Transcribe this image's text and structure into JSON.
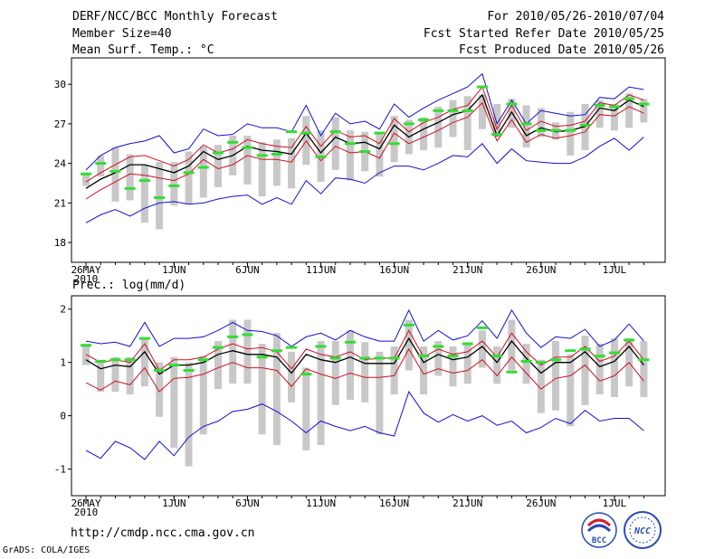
{
  "header": {
    "title": "DERF/NCC/BCC Monthly Forecast",
    "member_size": "Member Size=40",
    "variable": "Mean Surf. Temp.: °C",
    "period": "For 2010/05/26-2010/07/04",
    "refer_date": "Fcst Started Refer Date 2010/05/25",
    "produced_date": "Fcst Produced Date 2010/05/26"
  },
  "footer": {
    "url": "http://cmdp.ncc.cma.gov.cn",
    "credit": "GrADS: COLA/IGES",
    "logo_bcc": "BCC",
    "logo_ncc": "NCC"
  },
  "colors": {
    "blue": "#1010d0",
    "red": "#d01020",
    "black": "#000000",
    "box": "#c8c8c8",
    "green": "#33dd33"
  },
  "chart_data": [
    {
      "type": "line",
      "title": "Mean Surf. Temp.: °C",
      "x_tick_labels": [
        "26MAY",
        "1JUN",
        "6JUN",
        "11JUN",
        "16JUN",
        "21JUN",
        "26JUN",
        "1JUL"
      ],
      "x_tick_days": [
        0,
        6,
        11,
        16,
        21,
        26,
        31,
        36
      ],
      "year_label": "2010",
      "ylim": [
        16.5,
        32
      ],
      "y_ticks": [
        18,
        21,
        24,
        27,
        30
      ],
      "days": 39,
      "series": [
        {
          "name": "max",
          "color": "blue",
          "values": [
            23.5,
            24.6,
            25.2,
            25.5,
            25.7,
            26.1,
            24.8,
            25.1,
            26.6,
            26.1,
            26.2,
            27.0,
            26.7,
            26.7,
            26.4,
            28.4,
            26.1,
            27.8,
            27.0,
            27.2,
            26.6,
            28.5,
            27.5,
            28.2,
            28.8,
            29.3,
            29.8,
            30.8,
            27.0,
            28.8,
            27.0,
            28.0,
            27.8,
            27.6,
            27.7,
            29.0,
            28.9,
            29.8,
            29.6
          ]
        },
        {
          "name": "upper",
          "color": "red",
          "values": [
            22.6,
            23.3,
            23.9,
            24.5,
            24.6,
            24.2,
            23.8,
            24.3,
            25.4,
            24.8,
            25.1,
            25.8,
            25.5,
            25.3,
            25.2,
            26.8,
            25.3,
            26.5,
            26.0,
            26.1,
            25.5,
            27.4,
            26.4,
            27.1,
            27.5,
            28.1,
            28.4,
            29.8,
            26.6,
            28.4,
            26.5,
            27.2,
            26.8,
            26.9,
            27.2,
            28.6,
            28.4,
            29.2,
            28.8
          ]
        },
        {
          "name": "mean",
          "color": "black",
          "values": [
            22.1,
            22.8,
            23.3,
            23.9,
            23.9,
            23.6,
            23.3,
            23.8,
            24.9,
            24.3,
            24.6,
            25.3,
            25.0,
            24.9,
            24.7,
            26.3,
            24.8,
            26.0,
            25.5,
            25.6,
            25.1,
            26.9,
            26.0,
            26.6,
            27.1,
            27.7,
            28.0,
            29.2,
            26.1,
            27.9,
            26.1,
            26.7,
            26.4,
            26.5,
            26.8,
            28.2,
            28.0,
            28.8,
            28.3
          ]
        },
        {
          "name": "lower",
          "color": "red",
          "values": [
            21.3,
            22.0,
            22.6,
            23.2,
            23.1,
            22.9,
            22.7,
            23.2,
            24.3,
            23.6,
            23.9,
            24.6,
            24.3,
            24.3,
            24.1,
            25.7,
            24.2,
            25.3,
            24.8,
            24.9,
            24.4,
            26.3,
            25.5,
            26.0,
            26.5,
            27.1,
            27.5,
            28.6,
            25.7,
            27.3,
            25.6,
            26.2,
            25.9,
            26.1,
            26.4,
            27.7,
            27.6,
            28.3,
            27.8
          ]
        },
        {
          "name": "min",
          "color": "blue",
          "values": [
            19.5,
            20.1,
            20.5,
            20.0,
            20.6,
            21.0,
            21.1,
            20.9,
            21.0,
            21.3,
            21.5,
            21.6,
            20.9,
            21.4,
            20.9,
            22.7,
            21.7,
            22.9,
            22.8,
            22.5,
            23.3,
            23.8,
            23.8,
            23.5,
            24.0,
            24.6,
            24.5,
            25.5,
            24.0,
            25.1,
            24.2,
            24.1,
            24.0,
            24.0,
            24.5,
            25.3,
            25.9,
            25.0,
            26.0
          ]
        }
      ],
      "boxes": [
        [
          22.3,
          23.3
        ],
        [
          23.0,
          24.6
        ],
        [
          21.1,
          25.2
        ],
        [
          21.2,
          24.7
        ],
        [
          19.5,
          23.9
        ],
        [
          19.0,
          24.1
        ],
        [
          20.8,
          24.1
        ],
        [
          20.9,
          24.9
        ],
        [
          21.4,
          25.3
        ],
        [
          22.2,
          25.4
        ],
        [
          23.1,
          26.1
        ],
        [
          22.4,
          26.1
        ],
        [
          21.5,
          25.6
        ],
        [
          22.3,
          25.8
        ],
        [
          22.1,
          25.9
        ],
        [
          23.9,
          27.6
        ],
        [
          22.6,
          26.5
        ],
        [
          23.5,
          27.5
        ],
        [
          22.7,
          26.5
        ],
        [
          23.4,
          26.4
        ],
        [
          23.0,
          26.2
        ],
        [
          24.1,
          27.6
        ],
        [
          24.7,
          27.3
        ],
        [
          25.0,
          27.5
        ],
        [
          25.2,
          28.3
        ],
        [
          26.0,
          28.8
        ],
        [
          25.0,
          29.1
        ],
        [
          26.6,
          29.2
        ],
        [
          26.0,
          28.5
        ],
        [
          26.7,
          28.9
        ],
        [
          25.2,
          28.4
        ],
        [
          26.0,
          28.2
        ],
        [
          25.8,
          27.1
        ],
        [
          24.6,
          27.9
        ],
        [
          25.0,
          28.5
        ],
        [
          26.7,
          28.8
        ],
        [
          26.5,
          28.5
        ],
        [
          26.7,
          29.3
        ],
        [
          27.1,
          28.9
        ]
      ],
      "green_marks": [
        23.2,
        24.0,
        23.4,
        22.1,
        22.7,
        21.4,
        22.3,
        23.3,
        23.7,
        24.8,
        25.6,
        25.2,
        24.6,
        24.7,
        26.4,
        26.3,
        24.5,
        26.4,
        25.5,
        24.9,
        26.3,
        25.5,
        27.0,
        27.3,
        28.0,
        28.0,
        28.0,
        29.8,
        26.2,
        28.5,
        27.0,
        26.5,
        26.5,
        26.5,
        26.9,
        28.4,
        28.3,
        28.9,
        28.5
      ]
    },
    {
      "type": "line",
      "title": "Prec.: log(mm/d)",
      "x_tick_labels": [
        "26MAY",
        "1JUN",
        "6JUN",
        "11JUN",
        "16JUN",
        "21JUN",
        "26JUN",
        "1JUL"
      ],
      "x_tick_days": [
        0,
        6,
        11,
        16,
        21,
        26,
        31,
        36
      ],
      "year_label": "2010",
      "ylim": [
        -1.5,
        2.25
      ],
      "y_ticks": [
        -1,
        0,
        1,
        2
      ],
      "days": 39,
      "series": [
        {
          "name": "max",
          "color": "blue",
          "values": [
            1.4,
            1.35,
            1.38,
            1.3,
            1.75,
            1.3,
            1.45,
            1.45,
            1.48,
            1.6,
            1.75,
            1.6,
            1.58,
            1.5,
            1.3,
            1.48,
            1.55,
            1.42,
            1.6,
            1.48,
            1.4,
            1.4,
            1.98,
            1.4,
            1.6,
            1.42,
            1.5,
            1.78,
            1.45,
            1.98,
            1.55,
            1.28,
            1.48,
            1.45,
            1.62,
            1.3,
            1.42,
            1.72,
            1.4
          ]
        },
        {
          "name": "upper",
          "color": "red",
          "values": [
            1.15,
            1.0,
            1.05,
            1.0,
            1.35,
            0.85,
            1.05,
            1.05,
            1.1,
            1.25,
            1.35,
            1.25,
            1.28,
            1.2,
            0.88,
            1.25,
            1.15,
            1.1,
            1.2,
            1.05,
            1.08,
            1.08,
            1.6,
            1.1,
            1.25,
            1.15,
            1.2,
            1.4,
            1.1,
            1.55,
            1.2,
            0.95,
            1.1,
            1.1,
            1.3,
            1.02,
            1.12,
            1.4,
            1.05
          ]
        },
        {
          "name": "mean",
          "color": "black",
          "values": [
            1.05,
            0.88,
            0.95,
            0.92,
            1.2,
            0.78,
            0.95,
            0.95,
            1.0,
            1.15,
            1.22,
            1.15,
            1.15,
            1.1,
            0.8,
            1.15,
            1.05,
            1.0,
            1.1,
            0.98,
            0.98,
            0.98,
            1.45,
            1.0,
            1.15,
            1.05,
            1.1,
            1.3,
            1.0,
            1.4,
            1.08,
            0.8,
            1.0,
            1.0,
            1.2,
            0.92,
            1.02,
            1.3,
            0.95
          ]
        },
        {
          "name": "lower",
          "color": "red",
          "values": [
            0.62,
            0.48,
            0.65,
            0.58,
            0.9,
            0.45,
            0.7,
            0.72,
            0.78,
            0.9,
            1.0,
            0.9,
            0.9,
            0.85,
            0.55,
            0.88,
            0.78,
            0.7,
            0.8,
            0.72,
            0.72,
            0.75,
            1.25,
            0.78,
            0.88,
            0.8,
            0.85,
            1.05,
            0.75,
            1.1,
            0.8,
            0.5,
            0.7,
            0.75,
            0.95,
            0.65,
            0.75,
            1.0,
            0.65
          ]
        },
        {
          "name": "min",
          "color": "blue",
          "values": [
            -0.65,
            -0.8,
            -0.48,
            -0.6,
            -0.82,
            -0.48,
            -0.75,
            -0.4,
            -0.2,
            -0.1,
            0.08,
            0.12,
            0.22,
            0.08,
            -0.1,
            -0.32,
            -0.1,
            -0.2,
            -0.28,
            -0.2,
            -0.32,
            -0.38,
            0.45,
            0.05,
            -0.12,
            0.02,
            -0.1,
            0.0,
            -0.18,
            -0.1,
            -0.32,
            -0.22,
            -0.05,
            -0.15,
            0.1,
            -0.1,
            -0.05,
            -0.05,
            -0.28
          ]
        }
      ],
      "boxes": [
        [
          0.95,
          1.35
        ],
        [
          0.45,
          1.05
        ],
        [
          0.45,
          1.1
        ],
        [
          0.4,
          1.1
        ],
        [
          0.55,
          1.45
        ],
        [
          -0.02,
          1.0
        ],
        [
          -0.6,
          1.1
        ],
        [
          -0.95,
          1.0
        ],
        [
          -0.35,
          1.12
        ],
        [
          0.5,
          1.4
        ],
        [
          0.6,
          1.8
        ],
        [
          0.6,
          1.8
        ],
        [
          -0.35,
          1.35
        ],
        [
          -0.55,
          1.55
        ],
        [
          0.25,
          1.2
        ],
        [
          -0.65,
          0.9
        ],
        [
          -0.55,
          1.4
        ],
        [
          0.2,
          1.4
        ],
        [
          0.3,
          1.6
        ],
        [
          0.25,
          1.38
        ],
        [
          -0.35,
          1.2
        ],
        [
          0.4,
          1.3
        ],
        [
          0.85,
          1.8
        ],
        [
          0.4,
          1.3
        ],
        [
          0.75,
          1.4
        ],
        [
          0.55,
          1.3
        ],
        [
          0.6,
          1.35
        ],
        [
          0.9,
          1.6
        ],
        [
          0.6,
          1.3
        ],
        [
          0.85,
          1.8
        ],
        [
          0.6,
          1.35
        ],
        [
          0.05,
          1.05
        ],
        [
          0.1,
          1.4
        ],
        [
          -0.2,
          1.15
        ],
        [
          0.2,
          1.5
        ],
        [
          0.4,
          1.35
        ],
        [
          0.35,
          1.45
        ],
        [
          0.55,
          1.45
        ],
        [
          0.35,
          1.4
        ]
      ],
      "green_marks": [
        1.32,
        1.02,
        1.05,
        1.05,
        1.45,
        0.85,
        0.95,
        0.85,
        1.05,
        1.28,
        1.48,
        1.52,
        1.1,
        1.22,
        1.28,
        0.78,
        1.3,
        1.08,
        1.38,
        1.08,
        1.08,
        1.08,
        1.7,
        1.12,
        1.3,
        1.12,
        1.35,
        1.65,
        1.12,
        0.82,
        1.02,
        1.0,
        1.05,
        1.22,
        1.25,
        1.12,
        1.18,
        1.42,
        1.05
      ]
    }
  ]
}
